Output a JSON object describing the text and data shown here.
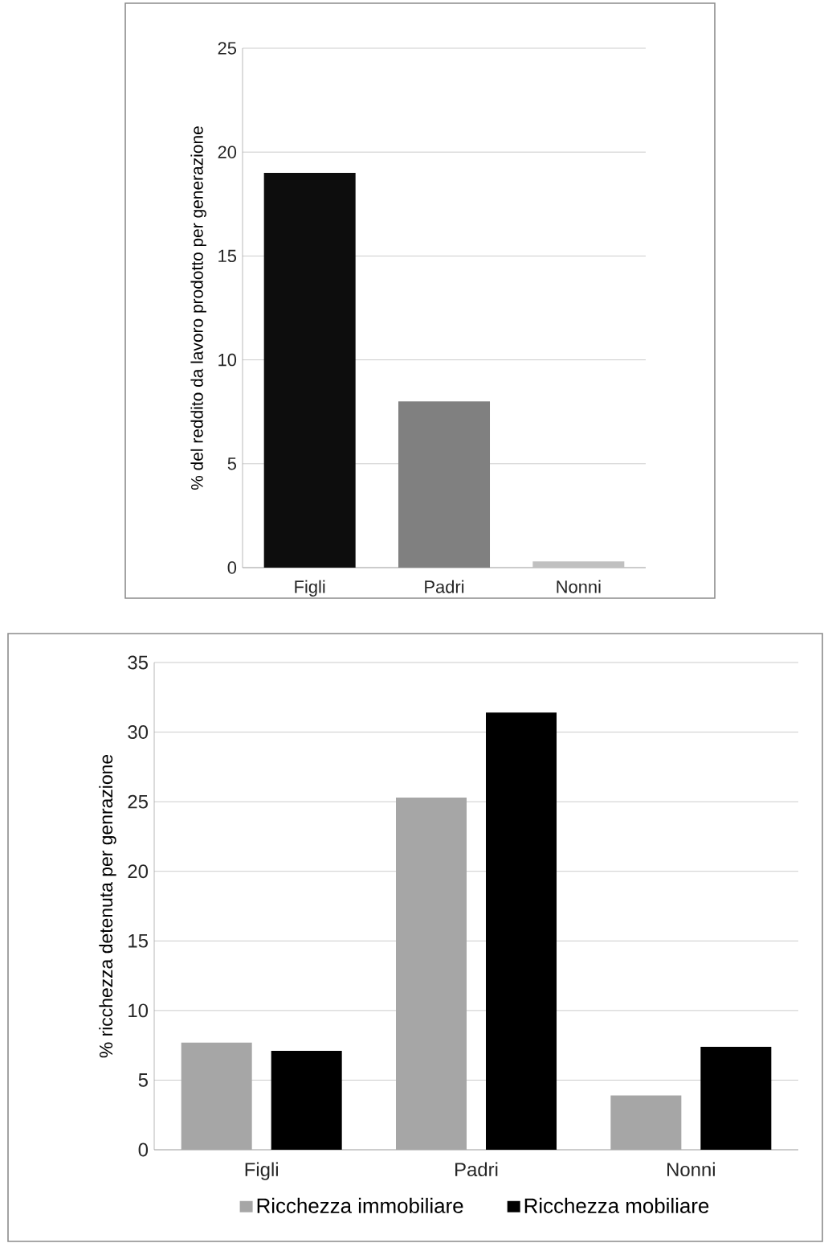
{
  "chart_data": [
    {
      "type": "bar",
      "ylabel": "% del reddito da lavoro prodotto per generazione",
      "categories": [
        "Figli",
        "Padri",
        "Nonni"
      ],
      "values": [
        19,
        8,
        0.3
      ],
      "colors": [
        "#0d0d0d",
        "#808080",
        "#c0c0c0"
      ],
      "ylim": [
        0,
        25
      ],
      "yticks": [
        0,
        5,
        10,
        15,
        20,
        25
      ],
      "grid": "y"
    },
    {
      "type": "bar",
      "ylabel": "% ricchezza detenuta per genrazione",
      "categories": [
        "Figli",
        "Padri",
        "Nonni"
      ],
      "series": [
        {
          "name": "Ricchezza immobiliare",
          "color": "#a6a6a6",
          "values": [
            7.7,
            25.3,
            3.9
          ]
        },
        {
          "name": "Ricchezza mobiliare",
          "color": "#000000",
          "values": [
            7.1,
            31.4,
            7.4
          ]
        }
      ],
      "ylim": [
        0,
        35
      ],
      "yticks": [
        0,
        5,
        10,
        15,
        20,
        25,
        30,
        35
      ],
      "grid": "y",
      "legend": "bottom"
    }
  ]
}
